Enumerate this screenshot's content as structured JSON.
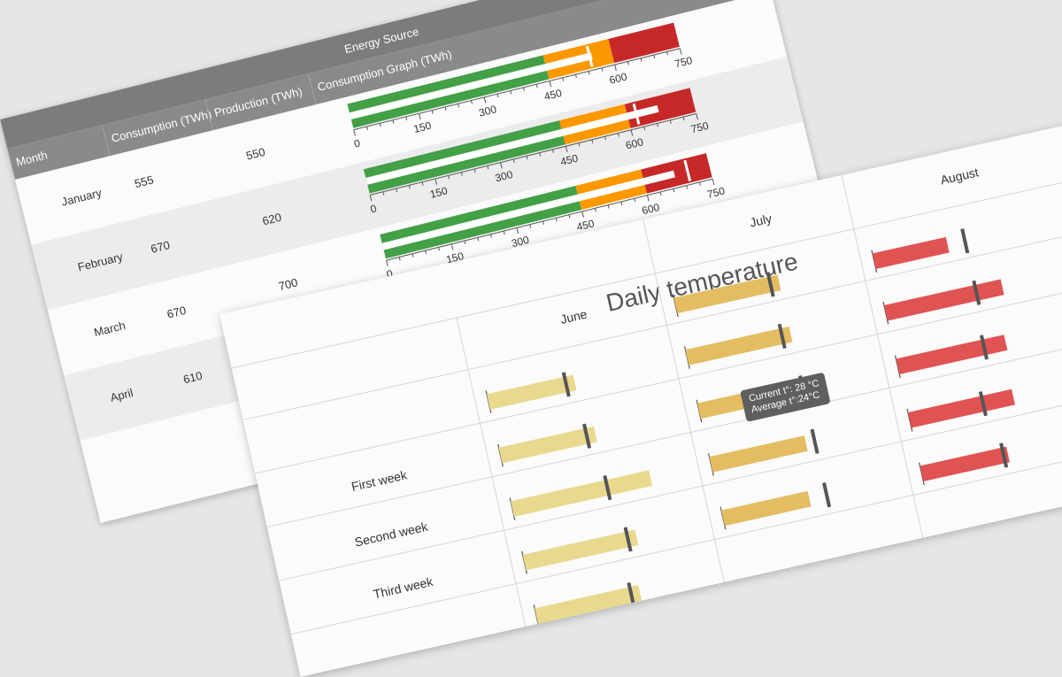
{
  "energy": {
    "group_header": "Energy Source",
    "columns": [
      "Month",
      "Consumption (TWh)",
      "Production (TWh)",
      "Consumption Graph (TWh)"
    ],
    "rows": [
      {
        "month": "January",
        "consumption": "555",
        "production": "550"
      },
      {
        "month": "February",
        "consumption": "670",
        "production": "620"
      },
      {
        "month": "March",
        "consumption": "670",
        "production": "700"
      },
      {
        "month": "April",
        "consumption": "610",
        "production": ""
      }
    ]
  },
  "temperature": {
    "title": "Daily temperature",
    "months": [
      "June",
      "July",
      "August"
    ],
    "weeks": [
      "First week",
      "Second week",
      "Third week"
    ],
    "tooltip": {
      "line1": "Current t°: 28 °C",
      "line2": "Average t°:24°C"
    }
  },
  "colors": {
    "good": "#43a047",
    "mid": "#fb9800",
    "bad": "#c62828",
    "june": "#e8d98e",
    "july": "#e4bd62",
    "august": "#e05353",
    "marker": "#555555"
  },
  "chart_data": [
    {
      "type": "bar",
      "subtype": "bullet",
      "categories": [
        "January",
        "February",
        "March",
        "April"
      ],
      "xlim": [
        0,
        750
      ],
      "ticks": [
        0,
        150,
        300,
        450,
        600,
        750
      ],
      "ranges": [
        {
          "from": 0,
          "to": 450,
          "color": "#43a047"
        },
        {
          "from": 450,
          "to": 600,
          "color": "#fb9800"
        },
        {
          "from": 600,
          "to": 750,
          "color": "#c62828"
        }
      ],
      "series": [
        {
          "name": "Consumption (TWh)",
          "values": [
            555,
            670,
            670,
            610
          ]
        },
        {
          "name": "Production (TWh)",
          "values": [
            550,
            620,
            700,
            null
          ]
        }
      ],
      "xlabel": "Consumption Graph (TWh)"
    },
    {
      "type": "bar",
      "subtype": "bullet",
      "title": "Daily temperature",
      "columns": [
        "June",
        "July",
        "August"
      ],
      "rows_note": "one bullet per day (extra partially visible rows included)",
      "xlim": [
        0,
        40
      ],
      "series": [
        {
          "name": "June",
          "current": [
            20,
            22,
            32,
            26,
            24
          ],
          "target": [
            18,
            20,
            22,
            24,
            22
          ]
        },
        {
          "name": "July",
          "current": [
            24,
            24,
            21,
            22,
            20
          ],
          "target": [
            22,
            22,
            24,
            24,
            24
          ]
        },
        {
          "name": "August",
          "current": [
            17,
            27,
            25,
            24,
            20
          ],
          "target": [
            21,
            21,
            20,
            17,
            19
          ]
        }
      ]
    }
  ]
}
